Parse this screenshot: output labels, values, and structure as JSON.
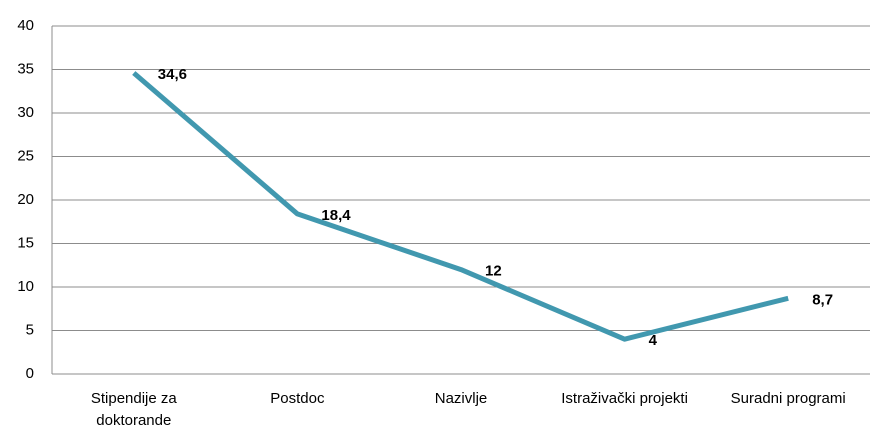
{
  "chart_data": {
    "type": "line",
    "categories": [
      "Stipendije za doktorande",
      "Postdoc",
      "Nazivlje",
      "Istraživački projekti",
      "Suradni programi"
    ],
    "series": [
      {
        "color": "#4198af",
        "values": [
          34.6,
          18.4,
          12,
          4,
          8.7
        ],
        "value_labels": [
          "34,6",
          "18,4",
          "12",
          "4",
          "8,7"
        ]
      }
    ],
    "ylim": [
      0,
      40
    ],
    "yticks": [
      0,
      5,
      10,
      15,
      20,
      25,
      30,
      35,
      40
    ],
    "grid": true
  }
}
